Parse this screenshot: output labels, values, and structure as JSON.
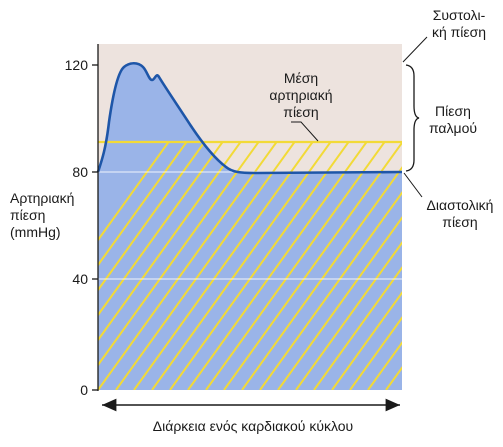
{
  "y_axis": {
    "title_lines": [
      "Αρτηριακή",
      "πίεση",
      "(mmHg)"
    ],
    "ticks": [
      "0",
      "40",
      "80",
      "120"
    ],
    "range": [
      0,
      130
    ]
  },
  "x_axis": {
    "label": "Διάρκεια ενός καρδιακού κύκλου"
  },
  "annotations": {
    "systolic": [
      "Συστολι-",
      "κή πίεση"
    ],
    "mean_arterial": [
      "Μέση",
      "αρτηριακή",
      "πίεση"
    ],
    "pulse": [
      "Πίεση",
      "παλμού"
    ],
    "diastolic": [
      "Διαστολική",
      "πίεση"
    ]
  },
  "levels": {
    "systolic_peak": 120,
    "mean_arterial": 91,
    "diastolic": 80
  },
  "colors": {
    "background_band": "#ede3de",
    "pressure_fill": "#9ab4e8",
    "pressure_curve": "#1e56a8",
    "mean_hatch": "#f2da37",
    "grid": "#ffffff",
    "axis": "#1a1a1a"
  }
}
